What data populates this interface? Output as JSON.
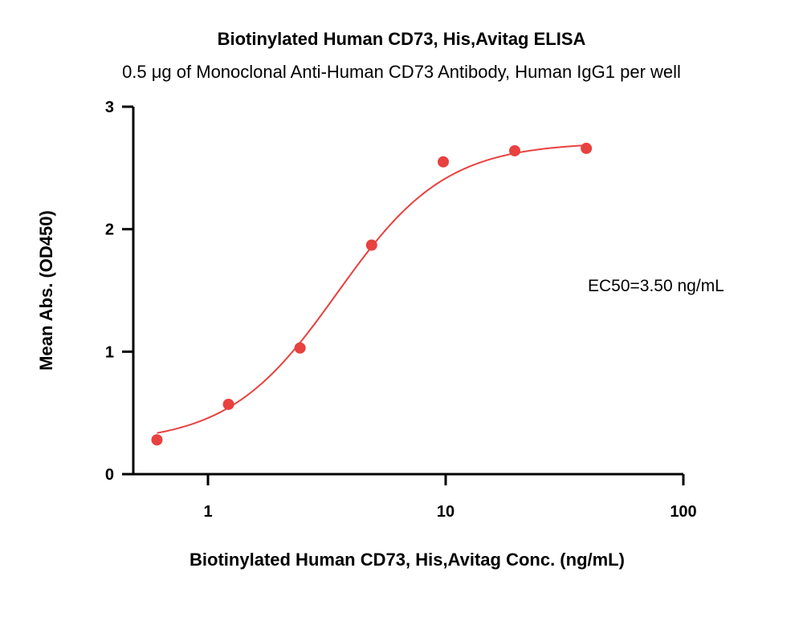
{
  "chart_data": {
    "type": "scatter",
    "title": "Biotinylated Human CD73, His,Avitag ELISA",
    "subtitle": "0.5 μg of Monoclonal Anti-Human CD73 Antibody, Human IgG1 per well",
    "xlabel": "Biotinylated Human CD73, His,Avitag Conc. (ng/mL)",
    "ylabel": "Mean Abs. (OD450)",
    "xscale": "log",
    "xlim": [
      0.5,
      100
    ],
    "ylim": [
      0,
      3
    ],
    "xticks": [
      1,
      10,
      100
    ],
    "xtick_labels": [
      "1",
      "10",
      "100"
    ],
    "yticks": [
      0,
      1,
      2,
      3
    ],
    "ytick_labels": [
      "0",
      "1",
      "2",
      "3"
    ],
    "grid": false,
    "color": "#e8413f",
    "points": {
      "x": [
        0.61,
        1.22,
        2.44,
        4.88,
        9.77,
        19.53,
        39.06
      ],
      "y": [
        0.28,
        0.57,
        1.03,
        1.87,
        2.55,
        2.64,
        2.66
      ]
    },
    "fit": {
      "model": "4PL",
      "bottom": 0.25,
      "top": 2.71,
      "ec50": 3.5,
      "hill": 1.9
    },
    "annotation": "EC50=3.50 ng/mL"
  }
}
